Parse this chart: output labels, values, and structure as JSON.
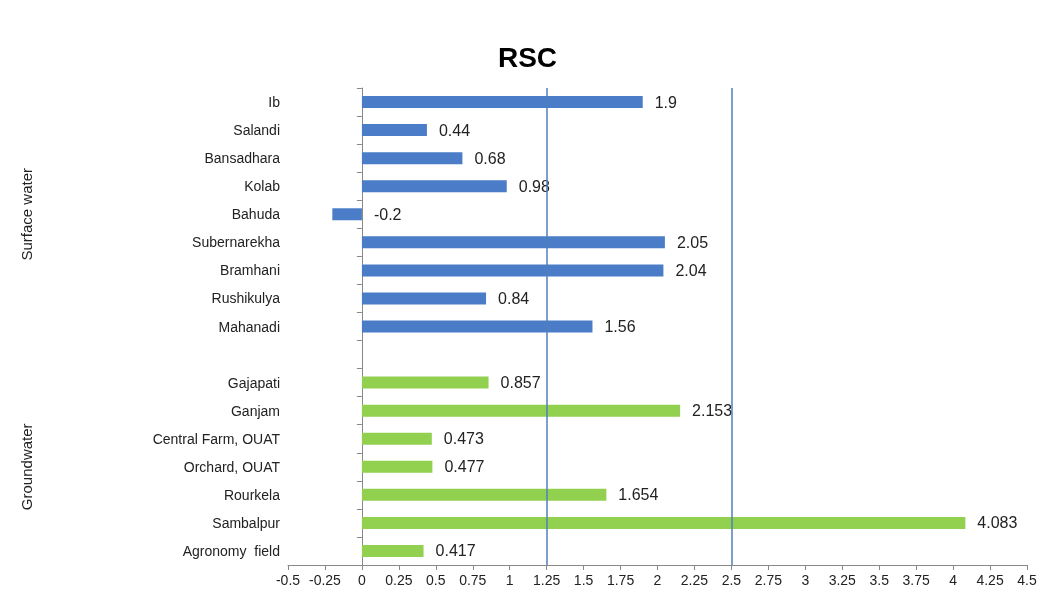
{
  "chart_data": {
    "type": "bar",
    "orientation": "horizontal",
    "title": "RSC",
    "categories": [
      "Ib",
      "Salandi",
      "Bansadhara",
      "Kolab",
      "Bahuda",
      "Subernarekha",
      "Bramhani",
      "Rushikulya",
      "Mahanadi",
      null,
      "Gajapati",
      "Ganjam",
      "Central Farm, OUAT",
      "Orchard, OUAT",
      "Rourkela",
      "Sambalpur",
      "Agronomy  field"
    ],
    "values": [
      1.9,
      0.44,
      0.68,
      0.98,
      -0.2,
      2.05,
      2.04,
      0.84,
      1.56,
      null,
      0.857,
      2.153,
      0.473,
      0.477,
      1.654,
      4.083,
      0.417
    ],
    "colors": [
      "#4a7cc7",
      "#4a7cc7",
      "#4a7cc7",
      "#4a7cc7",
      "#4a7cc7",
      "#4a7cc7",
      "#4a7cc7",
      "#4a7cc7",
      "#4a7cc7",
      null,
      "#92d050",
      "#92d050",
      "#92d050",
      "#92d050",
      "#92d050",
      "#92d050",
      "#92d050"
    ],
    "xlim": [
      -0.5,
      4.5
    ],
    "xticks": [
      -0.5,
      -0.25,
      0,
      0.25,
      0.5,
      0.75,
      1,
      1.25,
      1.5,
      1.75,
      2,
      2.25,
      2.5,
      2.75,
      3,
      3.25,
      3.5,
      3.75,
      4,
      4.25,
      4.5
    ],
    "ref_lines": [
      {
        "axis": "x",
        "value": 1.25,
        "color": "#4f81bd"
      },
      {
        "axis": "x",
        "value": 2.5,
        "color": "#4f81bd"
      }
    ],
    "annotations": [
      "Surface water",
      "Groundwater"
    ],
    "data_labels": true,
    "grid": false
  }
}
